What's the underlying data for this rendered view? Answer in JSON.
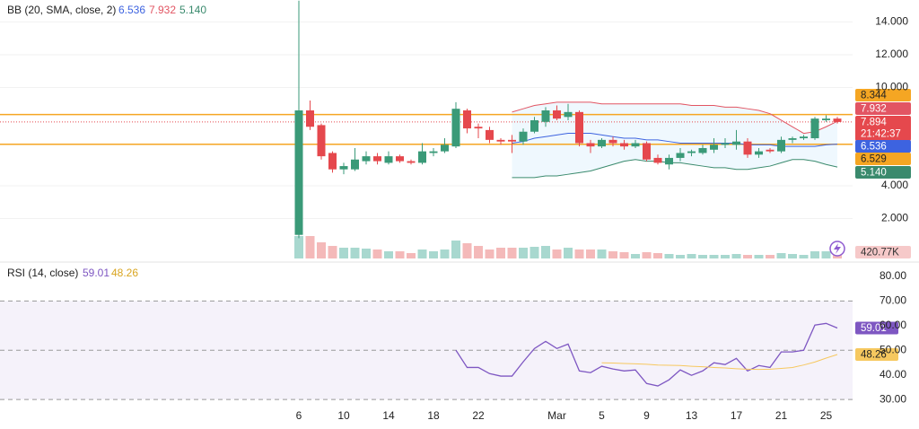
{
  "chart_data": [
    {
      "type": "candlestick",
      "title": "BB (20, SMA, close, 2)",
      "open": [
        1.0,
        8.6,
        7.7,
        6.0,
        5.0,
        5.0,
        5.5,
        5.8,
        5.4,
        5.8,
        5.5,
        5.4,
        6.0,
        6.1,
        6.4,
        8.6,
        7.6,
        7.4,
        6.8,
        6.8,
        6.7,
        7.3,
        7.9,
        8.6,
        8.2,
        8.5,
        6.6,
        6.4,
        6.8,
        6.6,
        6.4,
        6.6,
        5.7,
        5.3,
        5.7,
        6.0,
        6.0,
        6.2,
        6.5,
        6.5,
        6.7,
        5.9,
        6.2,
        6.1,
        6.8,
        6.9,
        6.9,
        8.0,
        8.1
      ],
      "high": [
        15.3,
        9.2,
        7.8,
        6.1,
        5.4,
        6.3,
        6.1,
        6.0,
        6.1,
        5.9,
        5.6,
        6.6,
        6.3,
        6.9,
        9.1,
        8.7,
        7.8,
        7.6,
        6.9,
        7.1,
        7.5,
        8.2,
        8.8,
        8.9,
        9.0,
        8.6,
        6.8,
        6.9,
        7.0,
        6.8,
        6.8,
        6.7,
        5.9,
        5.9,
        6.3,
        6.2,
        6.5,
        6.9,
        6.9,
        7.4,
        6.9,
        6.3,
        6.3,
        7.0,
        7.0,
        7.1,
        8.2,
        8.3,
        8.2
      ],
      "low": [
        0.8,
        7.4,
        5.6,
        4.8,
        4.7,
        4.9,
        5.3,
        5.3,
        5.3,
        5.4,
        5.3,
        5.3,
        5.8,
        6.0,
        6.3,
        7.2,
        6.9,
        6.6,
        6.5,
        6.0,
        6.5,
        7.2,
        7.6,
        8.0,
        8.0,
        6.4,
        6.0,
        6.3,
        6.4,
        6.2,
        6.3,
        5.5,
        5.3,
        5.0,
        5.5,
        5.8,
        5.9,
        6.0,
        6.3,
        6.2,
        5.7,
        5.7,
        6.0,
        6.0,
        6.6,
        6.8,
        6.8,
        7.9,
        7.8
      ],
      "close": [
        8.6,
        7.6,
        5.8,
        5.0,
        5.2,
        5.6,
        5.8,
        5.5,
        5.8,
        5.5,
        5.4,
        6.1,
        6.1,
        6.5,
        8.7,
        7.5,
        7.5,
        6.8,
        6.7,
        6.7,
        7.3,
        8.0,
        8.6,
        8.1,
        8.5,
        6.6,
        6.4,
        6.8,
        6.6,
        6.4,
        6.6,
        5.6,
        5.4,
        5.7,
        6.0,
        6.1,
        6.3,
        6.5,
        6.6,
        6.7,
        5.9,
        6.1,
        6.1,
        6.8,
        6.9,
        7.0,
        8.1,
        8.1,
        7.894
      ],
      "up_color": "#3a9a78",
      "down_color": "#e5484d",
      "volume": [
        1315,
        1315,
        947,
        736,
        631,
        631,
        579,
        526,
        421,
        421,
        316,
        526,
        421,
        526,
        1052,
        894,
        736,
        526,
        631,
        631,
        631,
        684,
        736,
        526,
        631,
        526,
        526,
        526,
        421,
        368,
        263,
        368,
        316,
        263,
        210,
        263,
        210,
        210,
        210,
        263,
        210,
        210,
        210,
        316,
        263,
        210,
        421,
        421,
        420.77
      ],
      "volume_labels": [
        null,
        null,
        null,
        null,
        null,
        null,
        null,
        null,
        null,
        null,
        null,
        null,
        null,
        null,
        null,
        null,
        null,
        null,
        null,
        null,
        null,
        null,
        null,
        null,
        null,
        null,
        null,
        null,
        null,
        null,
        null,
        null,
        null,
        null,
        null,
        null,
        null,
        null,
        null,
        null,
        null,
        null,
        null,
        null,
        null,
        null,
        null,
        null,
        "420.77K"
      ],
      "vlim": [
        0,
        4000
      ],
      "volume_up_color": "#a8d8cf",
      "volume_down_color": "#f4b9b9",
      "series": [
        {
          "color": "#e25563",
          "values": [
            null,
            null,
            null,
            null,
            null,
            null,
            null,
            null,
            null,
            null,
            null,
            null,
            null,
            null,
            null,
            null,
            null,
            null,
            null,
            8.5,
            8.7,
            8.9,
            9.0,
            9.1,
            9.1,
            9.1,
            9.1,
            9.0,
            9.0,
            9.0,
            9.0,
            9.0,
            9.0,
            9.0,
            9.0,
            8.9,
            8.9,
            8.9,
            8.8,
            8.8,
            8.7,
            8.6,
            8.4,
            8.0,
            7.6,
            7.2,
            7.3,
            7.6,
            7.932
          ]
        },
        {
          "color": "#3d63e0",
          "values": [
            null,
            null,
            null,
            null,
            null,
            null,
            null,
            null,
            null,
            null,
            null,
            null,
            null,
            null,
            null,
            null,
            null,
            null,
            null,
            6.6,
            6.7,
            6.9,
            7.0,
            7.1,
            7.2,
            7.2,
            7.2,
            7.1,
            7.0,
            6.9,
            6.9,
            6.8,
            6.8,
            6.7,
            6.6,
            6.6,
            6.6,
            6.6,
            6.6,
            6.6,
            6.5,
            6.5,
            6.5,
            6.4,
            6.4,
            6.4,
            6.4,
            6.5,
            6.536
          ]
        },
        {
          "color": "#3a8a6d",
          "values": [
            null,
            null,
            null,
            null,
            null,
            null,
            null,
            null,
            null,
            null,
            null,
            null,
            null,
            null,
            null,
            null,
            null,
            null,
            null,
            4.5,
            4.5,
            4.5,
            4.6,
            4.6,
            4.7,
            4.8,
            4.9,
            5.1,
            5.3,
            5.5,
            5.6,
            5.5,
            5.5,
            5.4,
            5.4,
            5.3,
            5.2,
            5.1,
            5.1,
            5.0,
            5.0,
            5.1,
            5.2,
            5.4,
            5.6,
            5.6,
            5.5,
            5.3,
            5.14
          ],
          "value_labels": [
            null,
            null,
            null,
            null,
            null,
            null,
            null,
            null,
            null,
            null,
            null,
            null,
            null,
            null,
            null,
            null,
            null,
            null,
            null,
            null,
            null,
            null,
            null,
            null,
            null,
            null,
            null,
            null,
            null,
            null,
            null,
            null,
            null,
            null,
            null,
            null,
            null,
            null,
            null,
            null,
            null,
            null,
            null,
            null,
            null,
            null,
            null,
            null,
            "5.140"
          ]
        }
      ],
      "levels": [
        {
          "value": 8.344,
          "color": "#f5a623"
        },
        {
          "value": 6.529,
          "color": "#f5a623"
        }
      ],
      "countdown": "21:42:37",
      "ylim": [
        -0.55,
        15.34
      ],
      "yticks": [
        {
          "value": 14,
          "label": "14.000"
        },
        {
          "value": 12,
          "label": "12.000"
        },
        {
          "value": 10,
          "label": "10.000"
        },
        {
          "value": 4,
          "label": "4.000"
        },
        {
          "value": 2,
          "label": "2.000"
        }
      ],
      "grid": true
    },
    {
      "type": "line",
      "title": "RSI (14, close)",
      "categories": [
        "6",
        null,
        null,
        null,
        "10",
        null,
        null,
        null,
        "14",
        null,
        null,
        null,
        "18",
        null,
        null,
        null,
        "22",
        null,
        null,
        null,
        null,
        null,
        null,
        "Mar",
        null,
        null,
        null,
        "5",
        null,
        null,
        null,
        "9",
        null,
        null,
        null,
        "13",
        null,
        null,
        null,
        "17",
        null,
        null,
        null,
        "21",
        null,
        null,
        null,
        "25",
        null
      ],
      "series": [
        {
          "color": "#7e57c2",
          "values": [
            null,
            null,
            null,
            null,
            null,
            null,
            null,
            null,
            null,
            null,
            null,
            null,
            null,
            null,
            50,
            43,
            43,
            40.5,
            39.5,
            39.5,
            45.3,
            50.7,
            53.6,
            50.7,
            52.5,
            41.6,
            40.9,
            43.5,
            42.4,
            41.6,
            42,
            36.5,
            35.5,
            38,
            42,
            39.8,
            41.6,
            44.9,
            44.2,
            46.7,
            41.6,
            43.8,
            43,
            49.3,
            49.3,
            50,
            60.2,
            60.9,
            59.01
          ]
        },
        {
          "color": "#f6c85f",
          "values": [
            null,
            null,
            null,
            null,
            null,
            null,
            null,
            null,
            null,
            null,
            null,
            null,
            null,
            null,
            null,
            null,
            null,
            null,
            null,
            null,
            null,
            null,
            null,
            null,
            null,
            null,
            null,
            44.9,
            44.8,
            44.6,
            44.5,
            44.3,
            44.0,
            43.9,
            43.8,
            43.5,
            43.3,
            43.0,
            42.8,
            42.5,
            42.3,
            42.2,
            42.3,
            42.6,
            43.0,
            44.0,
            45.2,
            46.8,
            48.26
          ]
        }
      ],
      "band": [
        30,
        70
      ],
      "levels": [
        70,
        50,
        30
      ],
      "ylim": [
        26.4,
        84.7
      ],
      "yticks": [
        {
          "value": 80,
          "label": "80.00"
        },
        {
          "value": 70,
          "label": "70.00"
        },
        {
          "value": 60,
          "label": "60.00"
        },
        {
          "value": 50,
          "label": "50.00"
        },
        {
          "value": 40,
          "label": "40.00"
        },
        {
          "value": 30,
          "label": "30.00"
        }
      ]
    }
  ]
}
